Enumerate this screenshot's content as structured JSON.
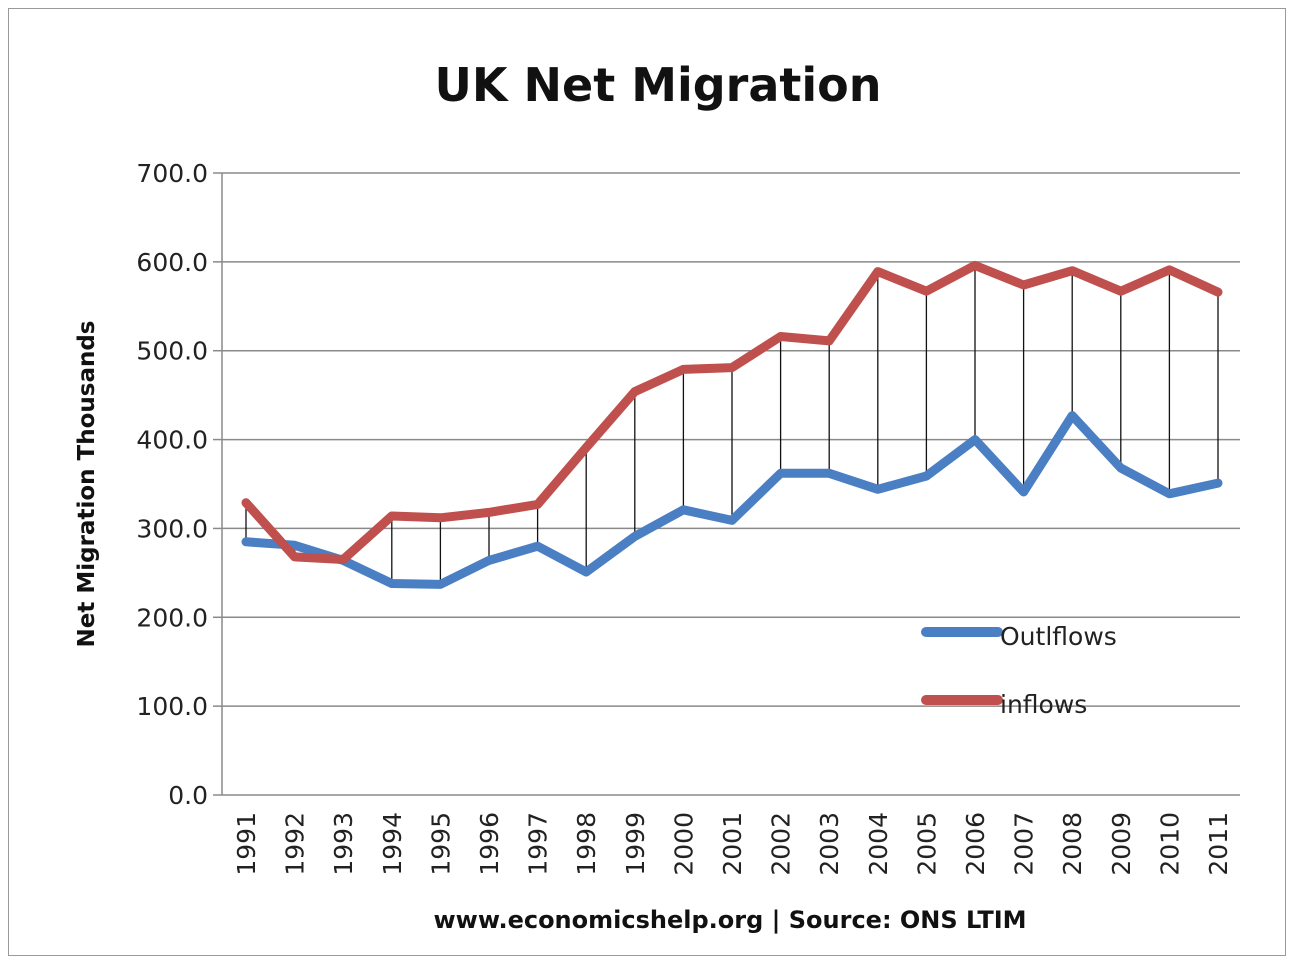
{
  "chart_data": {
    "type": "line",
    "title": "UK Net Migration",
    "ylabel": "Net Migration Thousands",
    "xlabel": "",
    "source_note": "www.economicshelp.org | Source: ONS LTIM",
    "categories": [
      "1991",
      "1992",
      "1993",
      "1994",
      "1995",
      "1996",
      "1997",
      "1998",
      "1999",
      "2000",
      "2001",
      "2002",
      "2003",
      "2004",
      "2005",
      "2006",
      "2007",
      "2008",
      "2009",
      "2010",
      "2011"
    ],
    "ylim": [
      0,
      700
    ],
    "yticks": [
      "0.0",
      "100.0",
      "200.0",
      "300.0",
      "400.0",
      "500.0",
      "600.0",
      "700.0"
    ],
    "ytick_values": [
      0,
      100,
      200,
      300,
      400,
      500,
      600,
      700
    ],
    "grid": true,
    "legend_position": "right",
    "drop_lines": true,
    "series": [
      {
        "name": "Outlflows",
        "color": "#4a7fc4",
        "values": [
          285,
          281,
          264,
          238,
          237,
          264,
          280,
          251,
          291,
          321,
          309,
          362,
          362,
          344,
          359,
          400,
          341,
          427,
          368,
          339,
          351
        ]
      },
      {
        "name": "inflows",
        "color": "#c0504d",
        "values": [
          329,
          268,
          265,
          314,
          312,
          318,
          327,
          391,
          454,
          479,
          481,
          516,
          511,
          589,
          567,
          596,
          574,
          590,
          567,
          591,
          566
        ]
      }
    ]
  }
}
